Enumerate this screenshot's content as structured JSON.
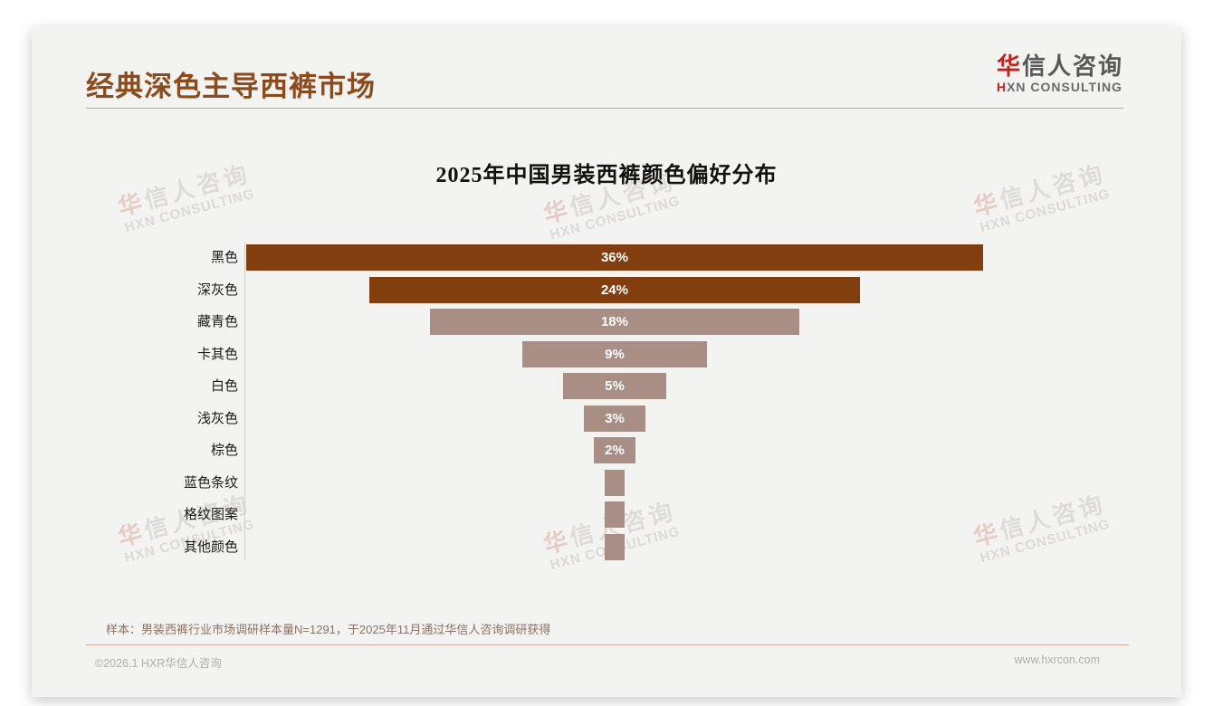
{
  "slide": {
    "title": "经典深色主导西裤市场",
    "logo": {
      "accent_char": "华",
      "rest_chars": "信人咨询",
      "tagline_accent": "H",
      "tagline_rest": "XN CONSULTING"
    },
    "watermark": {
      "line1_accent": "华",
      "line1_rest": "信人咨询",
      "line2": "HXN CONSULTING"
    },
    "footnote": "样本：男装西裤行业市场调研样本量N=1291，于2025年11月通过华信人咨询调研获得",
    "footer": {
      "left": "©2026.1 HXR华信人咨询",
      "right": "www.hxrcon.com"
    }
  },
  "chart_data": {
    "type": "bar",
    "variant": "horizontal-centered-funnel",
    "title": "2025年中国男装西裤颜色偏好分布",
    "categories": [
      "黑色",
      "深灰色",
      "藏青色",
      "卡其色",
      "白色",
      "浅灰色",
      "棕色",
      "蓝色条纹",
      "格纹图案",
      "其他颜色"
    ],
    "values": [
      36,
      24,
      18,
      9,
      5,
      3,
      2,
      1,
      1,
      1
    ],
    "data_labels": [
      "36%",
      "24%",
      "18%",
      "9%",
      "5%",
      "3%",
      "2%",
      "",
      "",
      ""
    ],
    "unit": "%",
    "xlabel": "",
    "ylabel": "",
    "value_axis_hidden": true,
    "grid": false,
    "legend": "none",
    "colors": {
      "dark_bar": "#833e0f",
      "light_bar": "#a98e85",
      "value_label": "#ffffff"
    },
    "dark_bar_count": 2
  }
}
